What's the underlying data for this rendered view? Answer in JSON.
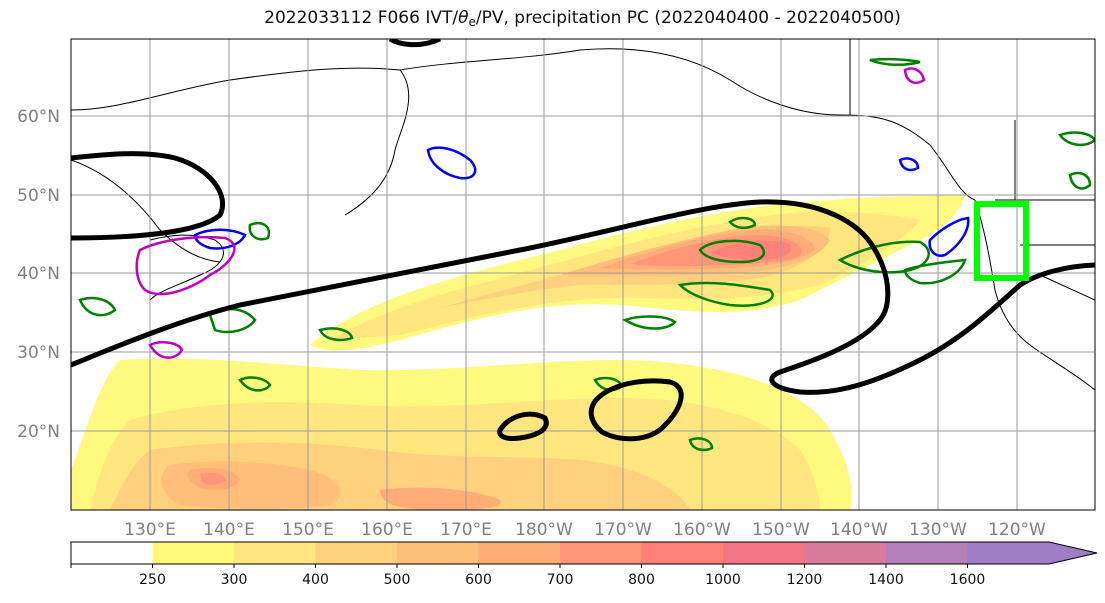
{
  "title": {
    "prefix": "2022033112 F066 IVT/",
    "theta": "θ",
    "theta_sub": "e",
    "suffix": "/PV, precipitation PC (2022040400 - 2022040500)"
  },
  "axes": {
    "lat_labels": [
      "60°N",
      "50°N",
      "40°N",
      "30°N",
      "20°N"
    ],
    "lon_labels": [
      "130°E",
      "140°E",
      "150°E",
      "160°E",
      "170°E",
      "180°W",
      "170°W",
      "160°W",
      "150°W",
      "140°W",
      "130°W",
      "120°W"
    ]
  },
  "colorbar": {
    "ticks": [
      "250",
      "300",
      "400",
      "500",
      "600",
      "700",
      "800",
      "1000",
      "1200",
      "1400",
      "1600"
    ],
    "colors": [
      "#ffffff",
      "#fff979",
      "#ffe67f",
      "#ffd07d",
      "#ffbe7a",
      "#ffac78",
      "#ff9677",
      "#ff8179",
      "#f47586",
      "#d97c9b",
      "#b380b8",
      "#a17cc6"
    ]
  },
  "legend_colors": {
    "ivt_contour": "#000000",
    "theta_e": "#008000",
    "pv_blue": "#0000ff",
    "pv_magenta": "#c000c0",
    "highlight_box": "#00ff00"
  }
}
